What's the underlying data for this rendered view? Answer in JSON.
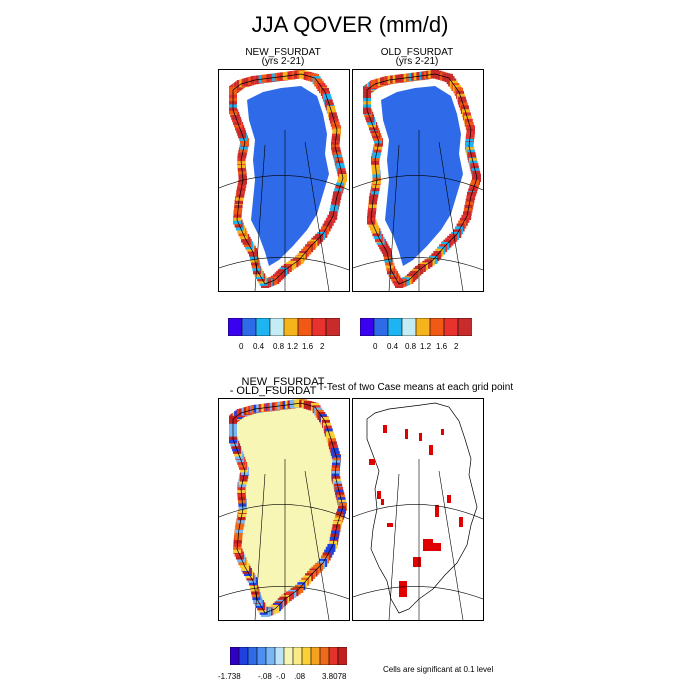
{
  "title": "JJA QOVER (mm/d)",
  "panels": {
    "new": {
      "title": "NEW_FSURDAT",
      "subtitle": "(yrs 2-21)"
    },
    "old": {
      "title": "OLD_FSURDAT",
      "subtitle": "(yrs 2-21)"
    },
    "diff": {
      "title": "NEW_FSURDAT",
      "subtitle": "- OLD_FSURDAT"
    },
    "ttest": {
      "title": "T-Test of two Case means at each grid point"
    }
  },
  "colorbars": {
    "left": {
      "colors": [
        "#3a00f0",
        "#2f6be8",
        "#1eb4f2",
        "#c3ecf5",
        "#f5b41c",
        "#f05a14",
        "#e8322d",
        "#c82b2b"
      ],
      "ticks": [
        "0",
        "0.4",
        "0.8",
        "1.2",
        "1.6",
        "2"
      ]
    },
    "right": {
      "colors": [
        "#3a00f0",
        "#2f6be8",
        "#1eb4f2",
        "#c3ecf5",
        "#f5b41c",
        "#f05a14",
        "#e8322d",
        "#c82b2b"
      ],
      "ticks": [
        "0",
        "0.4",
        "0.8",
        "1.2",
        "1.6",
        "2"
      ]
    },
    "diff": {
      "colors": [
        "#3000c8",
        "#2040e0",
        "#2f6be8",
        "#4d8ff0",
        "#79b6f5",
        "#bde3f7",
        "#f8f6b4",
        "#fbe98a",
        "#f9cf3a",
        "#f5a021",
        "#ee6a1a",
        "#e4322a",
        "#c02020"
      ],
      "ticks": [
        "-1.738",
        "-.08",
        "-.0",
        ".08",
        "3.8078"
      ]
    }
  },
  "note": "Cells are significant at 0.1 level",
  "legend_colors": {
    "significant": "#e00000",
    "land": "#ffffff"
  }
}
